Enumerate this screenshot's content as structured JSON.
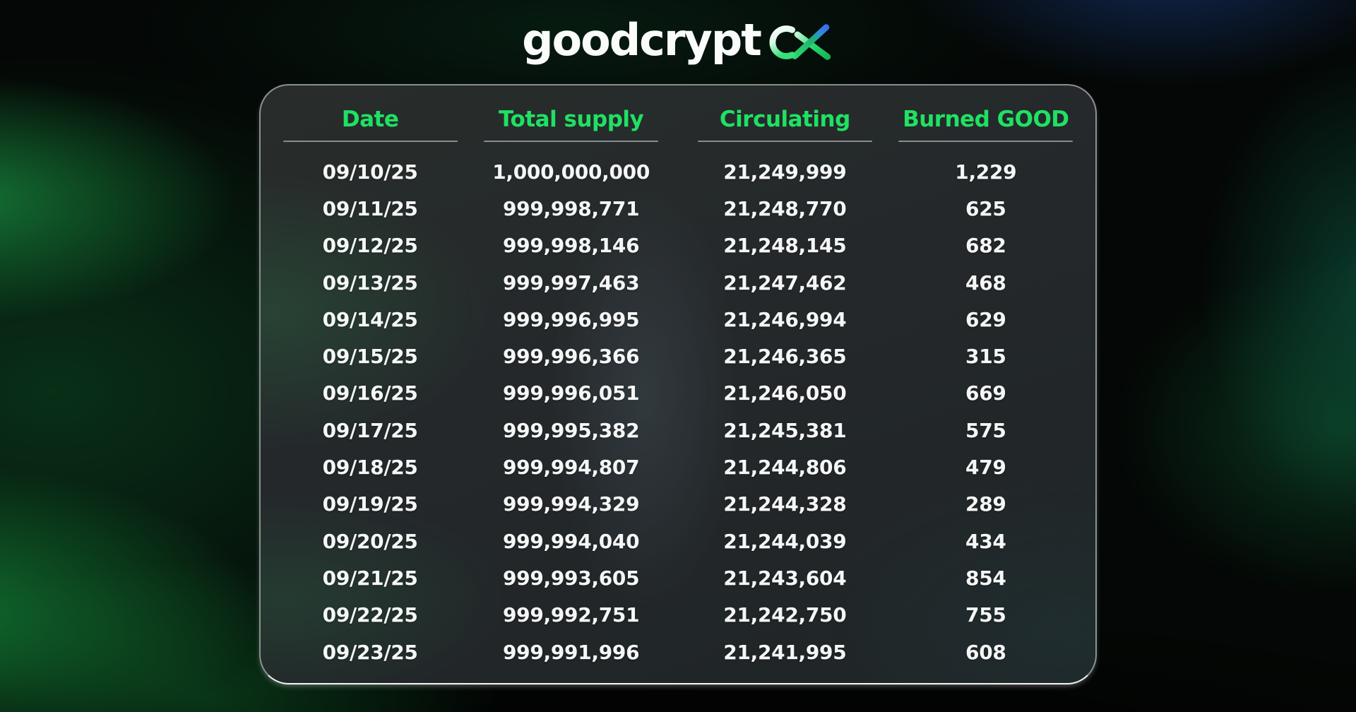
{
  "brand": {
    "logo_text": "goodcrypt",
    "logo_mark": "ox-gradient-mark"
  },
  "colors": {
    "accent_green": "#1fe163",
    "mark_blue": "#3b6df0",
    "text_white": "#f5f7f6",
    "underline_gray": "#c3caca",
    "panel_dark": "#24282b"
  },
  "table": {
    "columns": [
      "Date",
      "Total supply",
      "Circulating",
      "Burned GOOD"
    ],
    "rows": [
      [
        "09/10/25",
        "1,000,000,000",
        "21,249,999",
        "1,229"
      ],
      [
        "09/11/25",
        "999,998,771",
        "21,248,770",
        "625"
      ],
      [
        "09/12/25",
        "999,998,146",
        "21,248,145",
        "682"
      ],
      [
        "09/13/25",
        "999,997,463",
        "21,247,462",
        "468"
      ],
      [
        "09/14/25",
        "999,996,995",
        "21,246,994",
        "629"
      ],
      [
        "09/15/25",
        "999,996,366",
        "21,246,365",
        "315"
      ],
      [
        "09/16/25",
        "999,996,051",
        "21,246,050",
        "669"
      ],
      [
        "09/17/25",
        "999,995,382",
        "21,245,381",
        "575"
      ],
      [
        "09/18/25",
        "999,994,807",
        "21,244,806",
        "479"
      ],
      [
        "09/19/25",
        "999,994,329",
        "21,244,328",
        "289"
      ],
      [
        "09/20/25",
        "999,994,040",
        "21,244,039",
        "434"
      ],
      [
        "09/21/25",
        "999,993,605",
        "21,243,604",
        "854"
      ],
      [
        "09/22/25",
        "999,992,751",
        "21,242,750",
        "755"
      ],
      [
        "09/23/25",
        "999,991,996",
        "21,241,995",
        "608"
      ]
    ]
  },
  "chart_data": {
    "type": "table",
    "columns": [
      "Date",
      "Total supply",
      "Circulating",
      "Burned GOOD"
    ],
    "rows": [
      [
        "09/10/25",
        1000000000,
        21249999,
        1229
      ],
      [
        "09/11/25",
        999998771,
        21248770,
        625
      ],
      [
        "09/12/25",
        999998146,
        21248145,
        682
      ],
      [
        "09/13/25",
        999997463,
        21247462,
        468
      ],
      [
        "09/14/25",
        999996995,
        21246994,
        629
      ],
      [
        "09/15/25",
        999996366,
        21246365,
        315
      ],
      [
        "09/16/25",
        999996051,
        21246050,
        669
      ],
      [
        "09/17/25",
        999995382,
        21245381,
        575
      ],
      [
        "09/18/25",
        999994807,
        21244806,
        479
      ],
      [
        "09/19/25",
        999994329,
        21244328,
        289
      ],
      [
        "09/20/25",
        999994040,
        21244039,
        434
      ],
      [
        "09/21/25",
        999993605,
        21243604,
        854
      ],
      [
        "09/22/25",
        999992751,
        21242750,
        755
      ],
      [
        "09/23/25",
        999991996,
        21241995,
        608
      ]
    ]
  }
}
